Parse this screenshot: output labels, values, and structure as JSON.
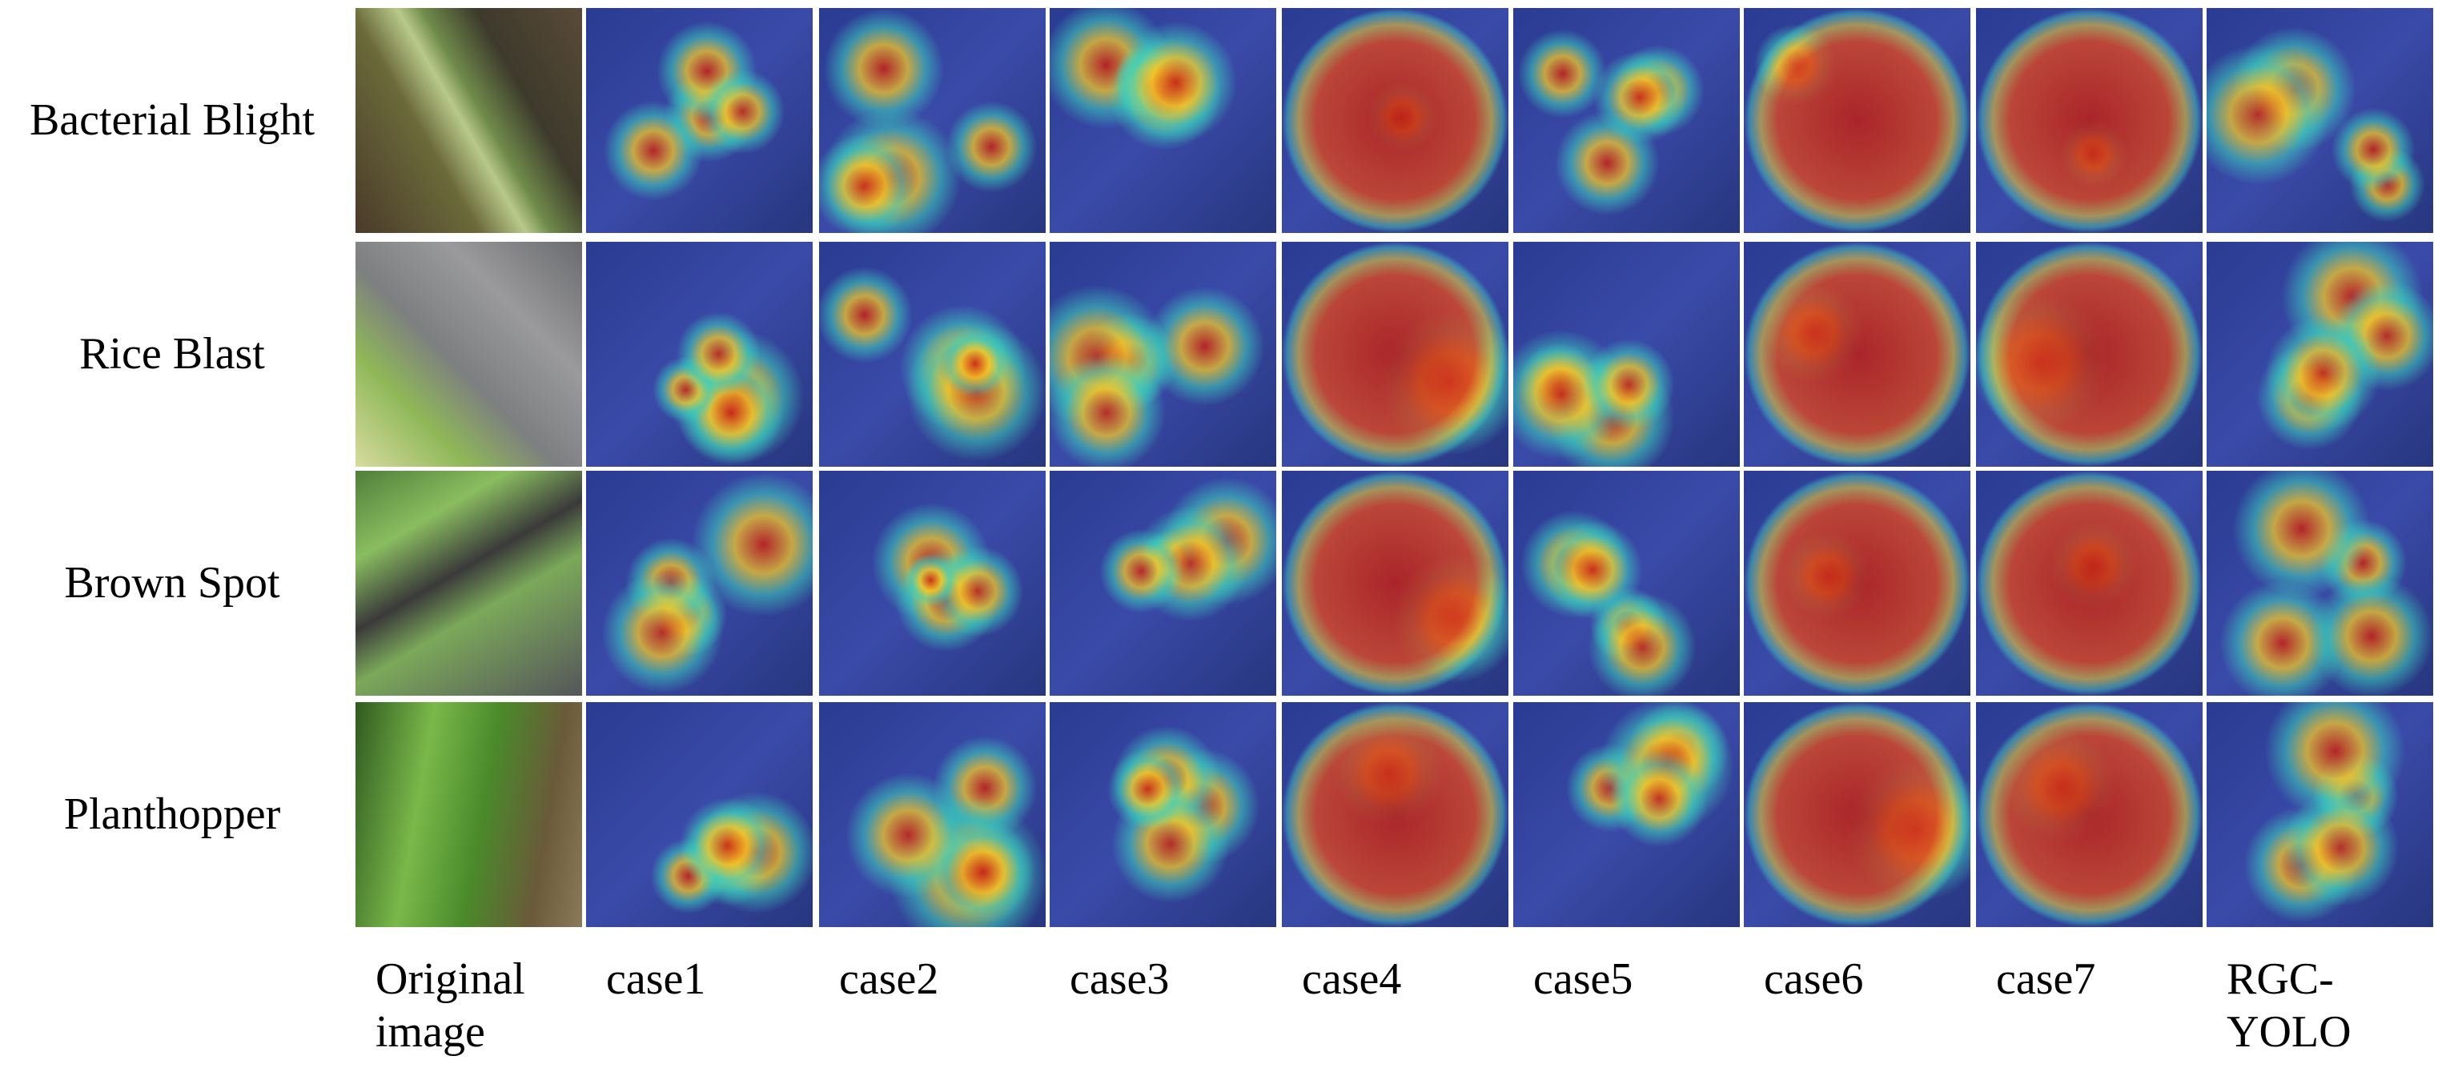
{
  "rows": [
    "Bacterial Blight",
    "Rice Blast",
    "Brown Spot",
    "Planthopper"
  ],
  "columns": [
    "Original image",
    "case1",
    "case2",
    "case3",
    "case4",
    "case5",
    "case6",
    "case7",
    "RGC-YOLO"
  ]
}
